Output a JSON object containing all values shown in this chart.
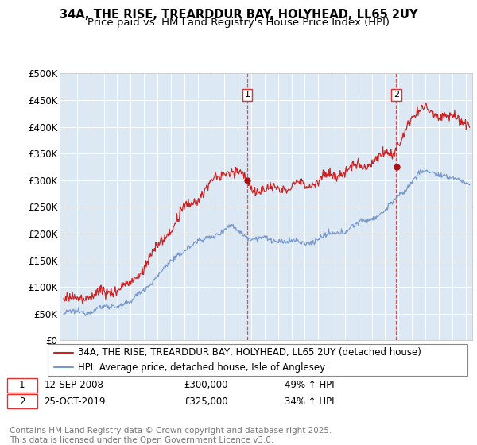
{
  "title": "34A, THE RISE, TREARDDUR BAY, HOLYHEAD, LL65 2UY",
  "subtitle": "Price paid vs. HM Land Registry's House Price Index (HPI)",
  "ylabel_ticks": [
    "£0",
    "£50K",
    "£100K",
    "£150K",
    "£200K",
    "£250K",
    "£300K",
    "£350K",
    "£400K",
    "£450K",
    "£500K"
  ],
  "ylim": [
    0,
    500000
  ],
  "xlim_start": 1994.7,
  "xlim_end": 2025.5,
  "sale1_x": 2008.7,
  "sale1_y": 300000,
  "sale2_x": 2019.82,
  "sale2_y": 325000,
  "red_color": "#cc2222",
  "blue_color": "#7799cc",
  "dashed_color": "#dd3333",
  "bg_color": "#dde8f5",
  "legend_label_red": "34A, THE RISE, TREARDDUR BAY, HOLYHEAD, LL65 2UY (detached house)",
  "legend_label_blue": "HPI: Average price, detached house, Isle of Anglesey",
  "annotation1_date": "12-SEP-2008",
  "annotation1_price": "£300,000",
  "annotation1_hpi": "49% ↑ HPI",
  "annotation2_date": "25-OCT-2019",
  "annotation2_price": "£325,000",
  "annotation2_hpi": "34% ↑ HPI",
  "footer": "Contains HM Land Registry data © Crown copyright and database right 2025.\nThis data is licensed under the Open Government Licence v3.0.",
  "title_fontsize": 10.5,
  "subtitle_fontsize": 9.5,
  "tick_fontsize": 8.5,
  "legend_fontsize": 8.5,
  "footer_fontsize": 7.5
}
